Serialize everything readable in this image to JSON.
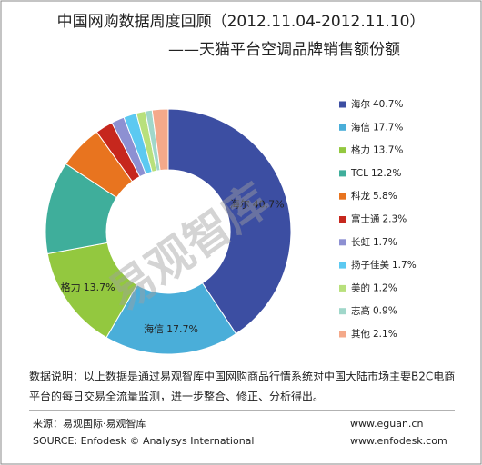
{
  "chart_data": {
    "type": "donut",
    "title": "中国网购数据周度回顾（2012.11.04-2012.11.10）",
    "subtitle": "——天猫平台空调品牌销售额份额",
    "watermark": "易观智库",
    "categories": [
      "海尔",
      "海信",
      "格力",
      "TCL",
      "科龙",
      "富士通",
      "长虹",
      "扬子佳美",
      "美的",
      "志高",
      "其他"
    ],
    "values": [
      40.7,
      17.7,
      13.7,
      12.2,
      5.8,
      2.3,
      1.7,
      1.7,
      1.2,
      0.9,
      2.1
    ],
    "value_labels": [
      "40.7%",
      "17.7%",
      "13.7%",
      "12.2%",
      "5.8%",
      "2.3%",
      "1.7%",
      "1.7%",
      "1.2%",
      "0.9%",
      "2.1%"
    ],
    "colors": [
      "#3c4ea2",
      "#4aaed9",
      "#93c83f",
      "#3fae9b",
      "#e8741f",
      "#c6271d",
      "#8d90d2",
      "#5cc9f1",
      "#b8e07c",
      "#a0d7ca",
      "#f4a98a"
    ],
    "legend": "right"
  },
  "footer": {
    "note": [
      "数据说明：以上数据是通过易观智库中国网购商品行情系统对中国大陆市场主要B2C电商",
      "平台的每日交易全流量监测，进一步整合、修正、分析得出。"
    ],
    "source": [
      "来源：易观国际·易观智库",
      "SOURCE:  Enfodesk © Analysys International"
    ],
    "urls": [
      "www.eguan.cn",
      "www.enfodesk.com"
    ]
  }
}
